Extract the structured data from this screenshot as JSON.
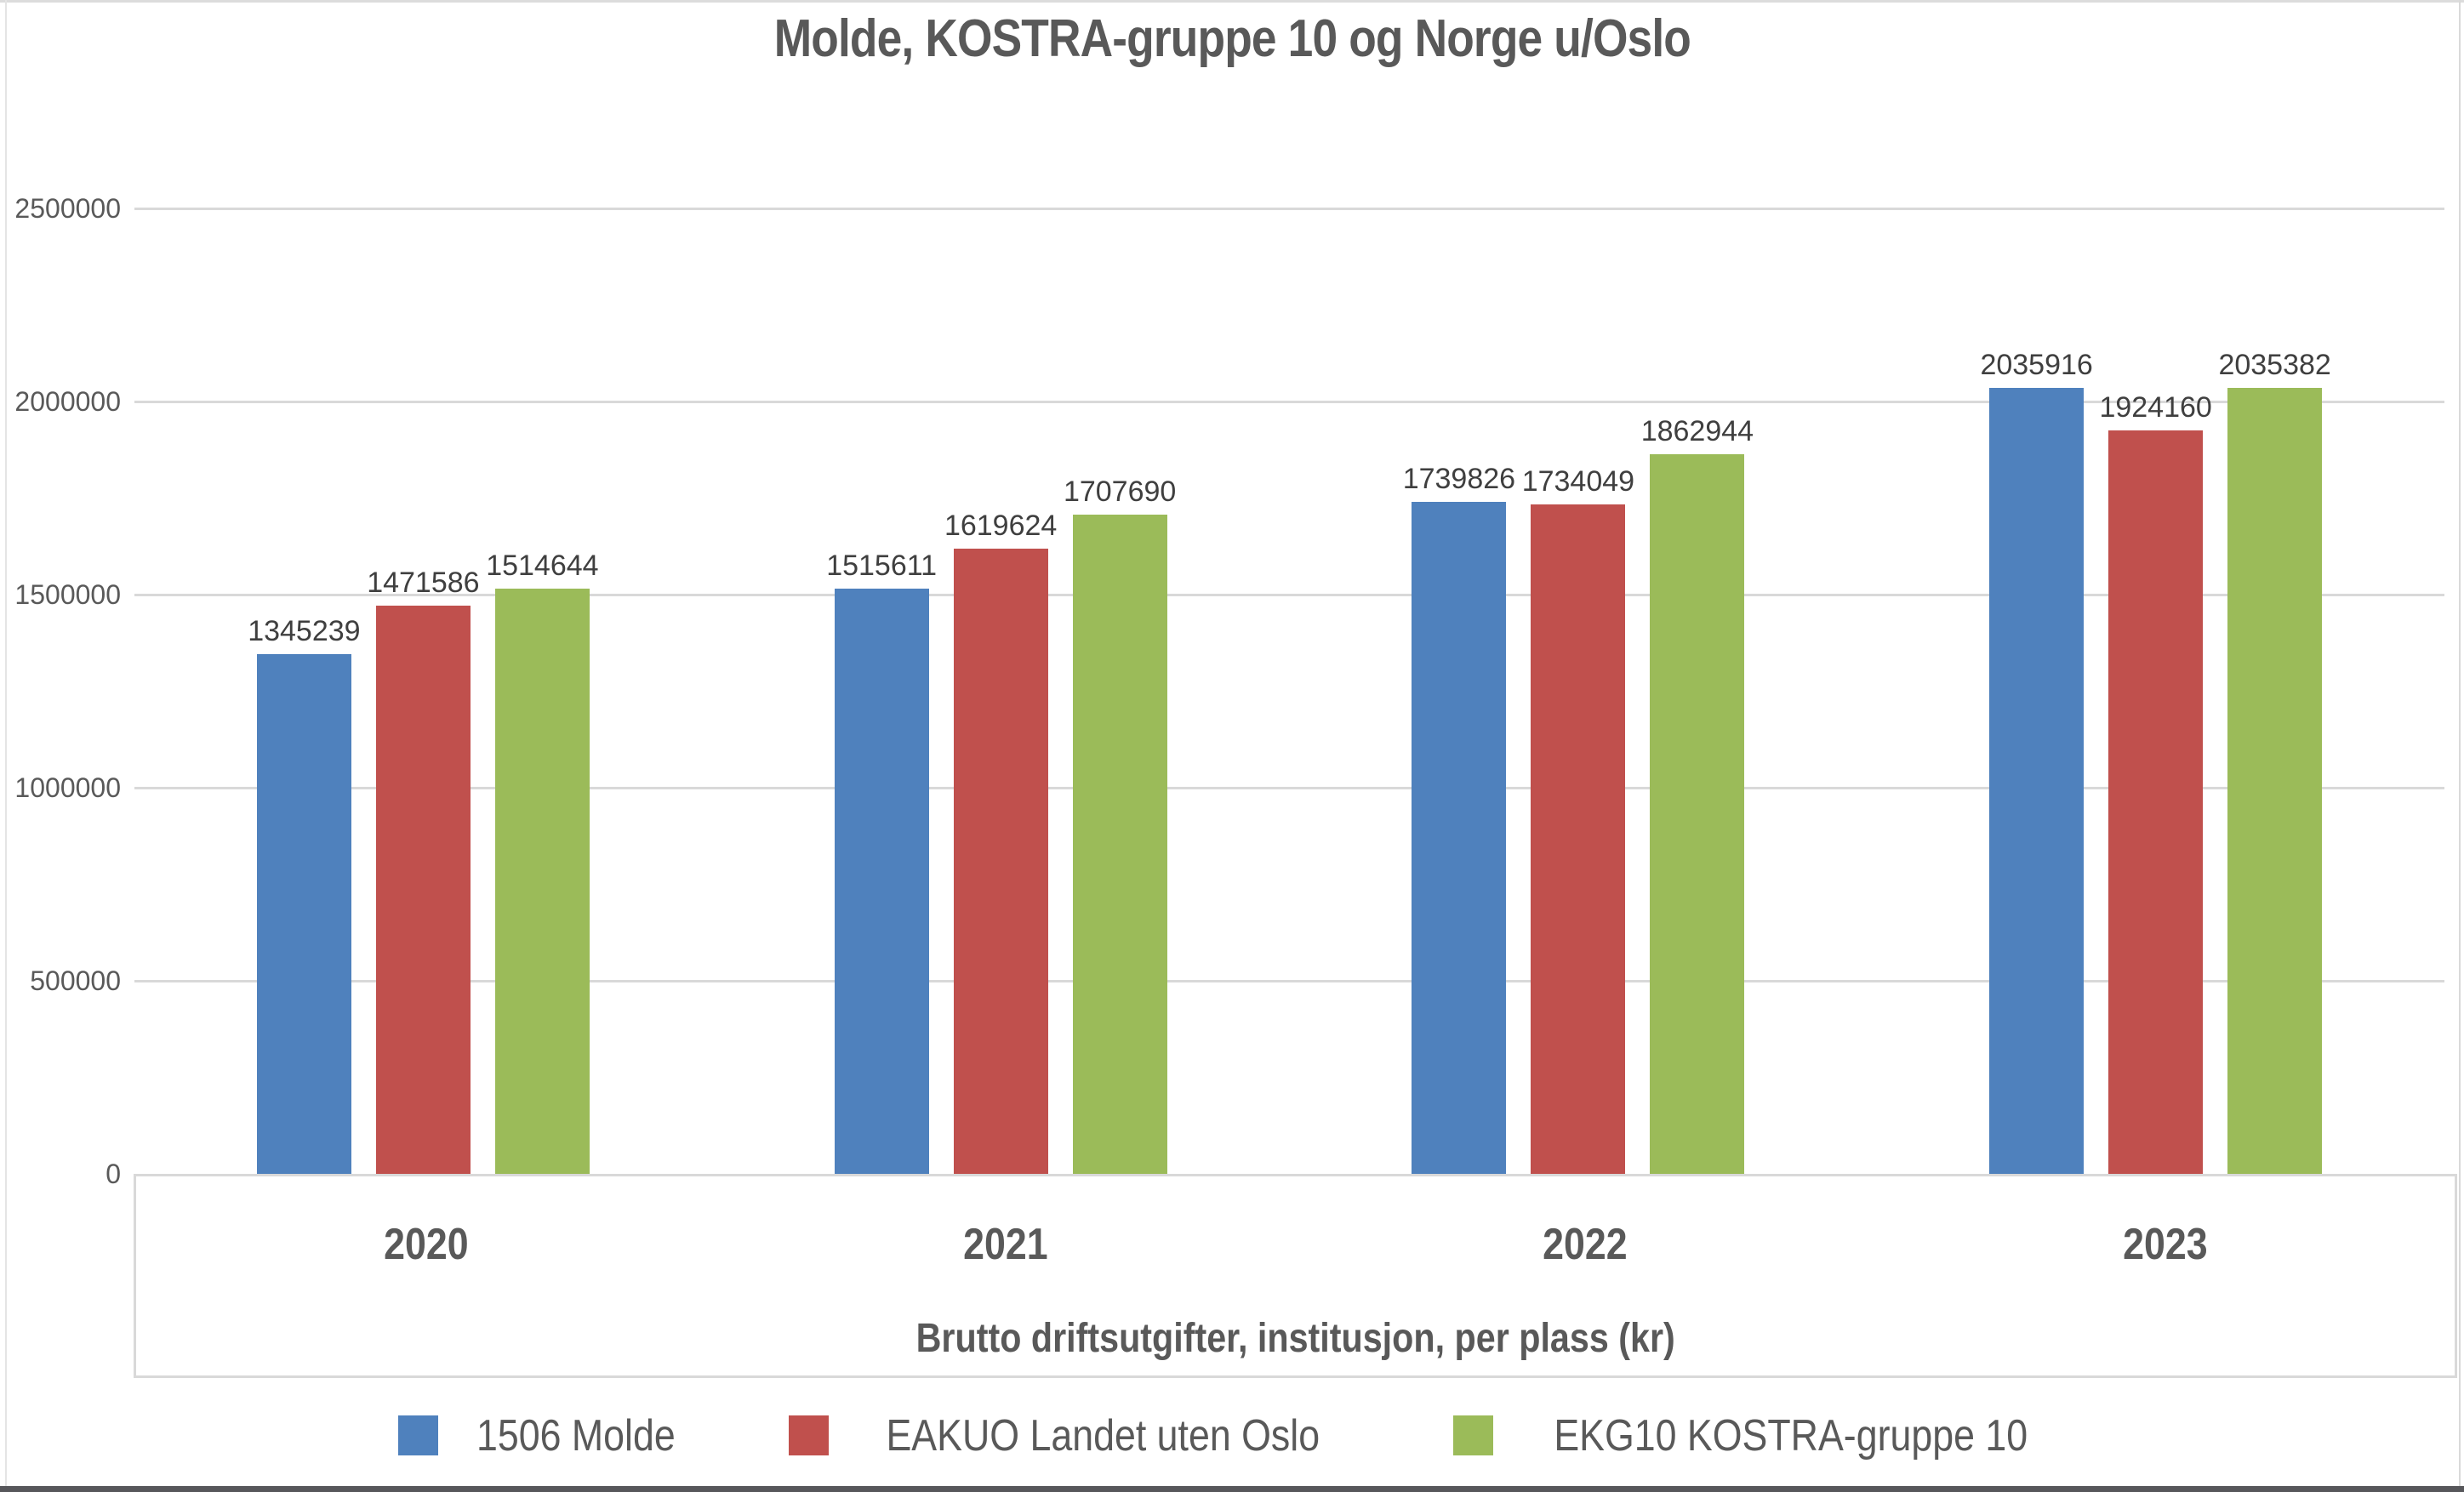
{
  "chart_data": {
    "type": "bar",
    "title": "Molde, KOSTRA-gruppe 10 og Norge u/Oslo",
    "xlabel": "Brutto driftsutgifter, institusjon, per plass (kr)",
    "ylabel": "",
    "categories": [
      "2020",
      "2021",
      "2022",
      "2023"
    ],
    "series": [
      {
        "name": "1506 Molde",
        "color": "#4F81BD",
        "values": [
          1345239,
          1515611,
          1739826,
          2035916
        ]
      },
      {
        "name": "EAKUO Landet uten Oslo",
        "color": "#C0504D",
        "values": [
          1471586,
          1619624,
          1734049,
          1924160
        ]
      },
      {
        "name": "EKG10 KOSTRA-gruppe 10",
        "color": "#9BBB59",
        "values": [
          1514644,
          1707690,
          1862944,
          2035382
        ]
      }
    ],
    "ylim": [
      0,
      2500000
    ],
    "yticks": [
      "2500000",
      "2000000",
      "1500000",
      "1000000",
      "500000",
      "0"
    ],
    "grid": "horizontal",
    "legend_position": "bottom",
    "bar_labels_shown": true
  }
}
